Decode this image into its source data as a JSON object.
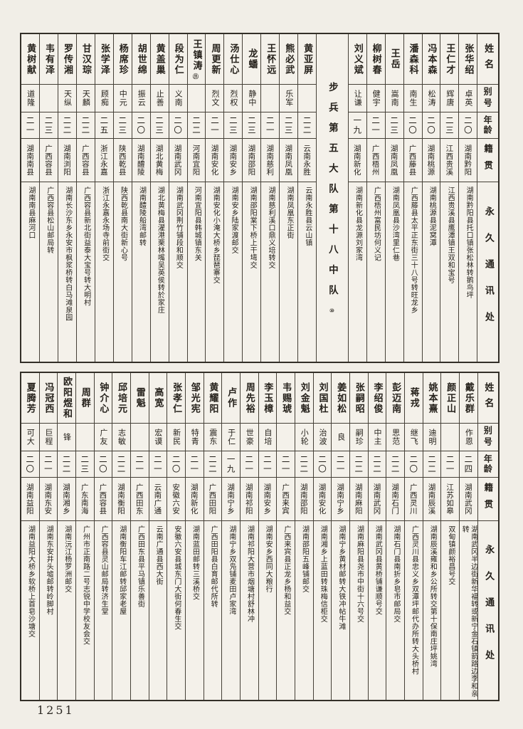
{
  "page": {
    "number": "1251"
  },
  "headers": {
    "name": "姓名",
    "alias": "别号",
    "age": "年龄",
    "origin": "籍贯",
    "address": "永久通讯处"
  },
  "top_table": {
    "columns": [
      {
        "name": "张华绍",
        "alias": "卓英",
        "age": "二〇",
        "origin": "湖南黔阳",
        "address": "湖南黔阳县托口镇张松林转鹅鸟坪"
      },
      {
        "name": "王仁才",
        "alias": "辉唐",
        "age": "二三",
        "origin": "江西贵溪",
        "address": "江西贵溪县鹰潭镇王双和宝号"
      },
      {
        "name": "冯本森",
        "alias": "松涛",
        "age": "二〇",
        "origin": "湖南桃源",
        "address": "湖南桃源县泥窝潭"
      },
      {
        "name": "潘森科",
        "alias": "南生",
        "age": "二〇",
        "origin": "广西藤县",
        "address": "广西藤县太平正东街三十八号转旺龙乡"
      },
      {
        "name": "王岳",
        "alias": "嵩南",
        "age": "二三",
        "origin": "湖南凤凰",
        "address": "湖南凤凰县沙湾里仁巷"
      },
      {
        "name": "柳树春",
        "alias": "健宇",
        "age": "二一",
        "origin": "广西梧州",
        "address": "广西梧州富民坊何义记"
      },
      {
        "name": "刘义斌",
        "alias": "让谦",
        "age": "一九",
        "origin": "湖南新化",
        "address": "湖南新化县龙源刘家湾"
      },
      {
        "section": "步兵第五大队第十八中队",
        "mark": "⑩"
      },
      {
        "name": "黄亚屏",
        "alias": "",
        "age": "二二",
        "origin": "云南永胜",
        "address": "云南永胜县云山镇"
      },
      {
        "name": "熊必武",
        "alias": "乐军",
        "age": "二三",
        "origin": "湖南凤凰",
        "address": "湖南凤凰东正街"
      },
      {
        "name": "王怀远",
        "alias": "",
        "age": "二一",
        "origin": "湖南慈利",
        "address": "湖南慈利溪口鼎义培转交"
      },
      {
        "name": "龙蟠",
        "alias": "静中",
        "age": "二三",
        "origin": "湖南邵阳",
        "address": "湖南邵阳棠下桥上干塆交"
      },
      {
        "name": "汤仕心",
        "alias": "烈权",
        "age": "二三",
        "origin": "湖南安乡",
        "address": "湖南安乡陆家渡邮交"
      },
      {
        "name": "周更新",
        "alias": "烈文",
        "age": "二一",
        "origin": "湖南安化",
        "address": "湖南安化小淹大桥乡琵琶寨交"
      },
      {
        "name": "王镇涛",
        "mark": "⑪",
        "alias": "",
        "age": "二二",
        "origin": "河南宜阳",
        "address": "河南宜阳县韩城镇东关"
      },
      {
        "name": "段为仁",
        "alias": "义南",
        "age": "二〇",
        "origin": "湖南武冈",
        "address": "湖南武冈荆竹铺段和顺交"
      },
      {
        "name": "黄盖巢",
        "alias": "止善",
        "age": "二三",
        "origin": "湖北黄梅",
        "address": "湖北黄梅县濯港栗林嘴吴英侯转於家庄"
      },
      {
        "name": "胡世绵",
        "alias": "振云",
        "age": "二〇",
        "origin": "湖南醴陵",
        "address": "湖南醴陵船湾邮转"
      },
      {
        "name": "杨席珍",
        "alias": "中元",
        "age": "二三",
        "origin": "陕西乾县",
        "address": "陕西乾县南大街新心号"
      },
      {
        "name": "张学泽",
        "alias": "顾痴",
        "age": "二五",
        "origin": "浙江永嘉",
        "address": "浙江永嘉永场寺前街交"
      },
      {
        "name": "甘汉琮",
        "alias": "天麟",
        "age": "二二",
        "origin": "广西容县",
        "address": "广西容县新北街益泰大宝号转大明村"
      },
      {
        "name": "罗传湘",
        "alias": "天纵",
        "age": "二二",
        "origin": "湖南浏阳",
        "address": "湖南长沙东乡永安市枫浆桥转白马滩泉园"
      },
      {
        "name": "韦有泽",
        "alias": "",
        "age": "二三",
        "origin": "广西容县",
        "address": "广西容县松山邮局转"
      },
      {
        "name": "黄树献",
        "alias": "道隆",
        "age": "二一",
        "origin": "湖南南县",
        "address": "湖南南县麻河口"
      }
    ]
  },
  "bottom_table": {
    "columns": [
      {
        "name": "戴乐群",
        "alias": "作恩",
        "age": "二四",
        "origin": "湖南武冈",
        "address": "湖南武冈半边街新华福转或新宁金石镇箭路边李和亲转"
      },
      {
        "name": "颜正山",
        "alias": "",
        "age": "二一",
        "origin": "江苏如皋",
        "address": "双甸镇颜裕昌号交"
      },
      {
        "name": "姚本熹",
        "alias": "迪明",
        "age": "二二",
        "origin": "湖南辰溪",
        "address": "湖南辰溪雍和乡公所转交第十保南庄坪姚湾"
      },
      {
        "name": "蒋戎",
        "alias": "继飞",
        "age": "二〇",
        "origin": "广西灵川",
        "address": "广西灵川县忠义乡双潭坪邮代办所转大头桥村"
      },
      {
        "name": "彭迈南",
        "alias": "思范",
        "age": "二二",
        "origin": "湖南石门",
        "address": "湖南石门县南折乡皂市邮局交"
      },
      {
        "name": "李绍俊",
        "alias": "中主",
        "age": "二二",
        "origin": "湖南武冈",
        "address": "湖南武冈县黄桥铺谦顺号交"
      },
      {
        "name": "张嗣昭",
        "alias": "嗣珍",
        "age": "二二",
        "origin": "湖南麻阳",
        "address": "湖南麻阳县尧市中街十六号交"
      },
      {
        "name": "姜如松",
        "alias": "良",
        "age": "二一",
        "origin": "湖南宁乡",
        "address": "湖南宁乡黄材邮转大铁冲帖牛滩"
      },
      {
        "name": "刘国杜",
        "alias": "治波",
        "age": "二〇",
        "origin": "湖南安化",
        "address": "湖南湘乡上蓝田转珠梅信柜交"
      },
      {
        "name": "刘金魁",
        "alias": "小轮",
        "age": "二二",
        "origin": "湖南邵阳",
        "address": "湖南邵阳五峰铺邮交"
      },
      {
        "name": "韦赐琥",
        "alias": "",
        "age": "二一",
        "origin": "广西来宾",
        "address": "广西来宾县正龙乡杨和益交"
      },
      {
        "name": "李玉樟",
        "alias": "自培",
        "age": "二一",
        "origin": "湖南安乡",
        "address": "湖南安乡西同大粮行"
      },
      {
        "name": "周先裕",
        "alias": "世豪",
        "age": "二一",
        "origin": "湖南祁阳",
        "address": "湖南祁阳大营市烟塘村舒林冲"
      },
      {
        "name": "卢作",
        "alias": "于仁",
        "age": "一九",
        "origin": "湖南宁乡",
        "address": "湖南宁乡双凫铺麦田卢家湾"
      },
      {
        "name": "黄耀阳",
        "alias": "震东",
        "age": "二二",
        "origin": "广西田阳",
        "address": "广西田阳县白育邮代所转"
      },
      {
        "name": "邹光宪",
        "alias": "特青",
        "age": "二一",
        "origin": "湖南新化",
        "address": "湖南蓝田邮转三溪桥交"
      },
      {
        "name": "张孝仁",
        "alias": "新民",
        "age": "二〇",
        "origin": "安徽六安",
        "address": "安徽六安县城东门大街何春生交"
      },
      {
        "name": "高宽",
        "alias": "宏谟",
        "age": "二一",
        "origin": "云南广通",
        "address": "云南广通县西大街"
      },
      {
        "name": "雷魁",
        "alias": "",
        "age": "二一",
        "origin": "广西田东",
        "address": "广西田东县平马镇乐善街"
      },
      {
        "name": "邱培元",
        "alias": "志敏",
        "age": "二二",
        "origin": "湖南衡阳",
        "address": "湖南衡阳车江邮转邱家老屋"
      },
      {
        "name": "钟介心",
        "alias": "广友",
        "age": "二〇",
        "origin": "广西容县",
        "address": "广西容县灵山邮局转济生堂"
      },
      {
        "name": "周群",
        "alias": "",
        "age": "二三",
        "origin": "广东南海",
        "address": "广州市正南路二号志锐中学校友会交"
      },
      {
        "name": "欧阳煜和",
        "alias": "锋",
        "age": "二二",
        "origin": "湖南湘乡",
        "address": "湖南沅江杨罗洲邮交"
      },
      {
        "name": "冯冠西",
        "alias": "巨程",
        "age": "二一",
        "origin": "湖南东安",
        "address": "湖南东安井头墟邮转岭脚村"
      },
      {
        "name": "夏腾芳",
        "alias": "可大",
        "age": "二〇",
        "origin": "湖南益阳",
        "address": "湖南益阳大桥乡软桥上首皂沙塘交"
      }
    ]
  }
}
